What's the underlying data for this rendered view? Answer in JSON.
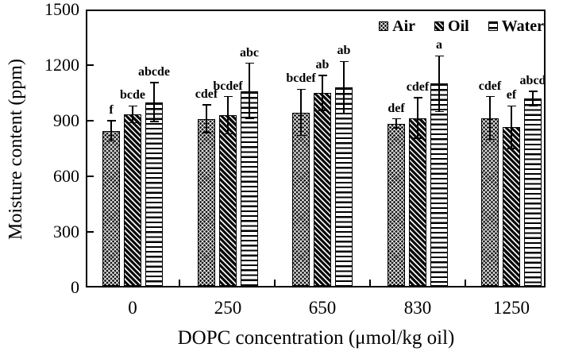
{
  "chart_data": {
    "type": "bar",
    "title": "",
    "xlabel": "DOPC concentration (μmol/kg oil)",
    "ylabel": "Moisture content (ppm)",
    "ylim": [
      0,
      1500
    ],
    "yticks": [
      0,
      300,
      600,
      900,
      1200,
      1500
    ],
    "categories": [
      "0",
      "250",
      "650",
      "830",
      "1250"
    ],
    "grid": false,
    "legend_position": "top-right-inside",
    "axis_color": "#000000",
    "background_color": "#ffffff",
    "series": [
      {
        "name": "Air",
        "pattern": "dense-dark-crosshatch",
        "values": [
          845,
          910,
          945,
          885,
          915
        ],
        "errors": [
          55,
          75,
          125,
          25,
          115
        ],
        "letters": [
          "f",
          "cdef",
          "bcdef",
          "def",
          "cdef"
        ]
      },
      {
        "name": "Oil",
        "pattern": "diagonal-stripes",
        "values": [
          935,
          930,
          1050,
          915,
          865
        ],
        "errors": [
          45,
          100,
          95,
          110,
          115
        ],
        "letters": [
          "bcde",
          "bcdef",
          "ab",
          "cdef",
          "ef"
        ]
      },
      {
        "name": "Water",
        "pattern": "horizontal-stripes",
        "values": [
          1000,
          1060,
          1080,
          1100,
          1020
        ],
        "errors": [
          105,
          150,
          140,
          150,
          38
        ],
        "letters": [
          "abcde",
          "abc",
          "ab",
          "a",
          "abcd"
        ]
      }
    ]
  }
}
